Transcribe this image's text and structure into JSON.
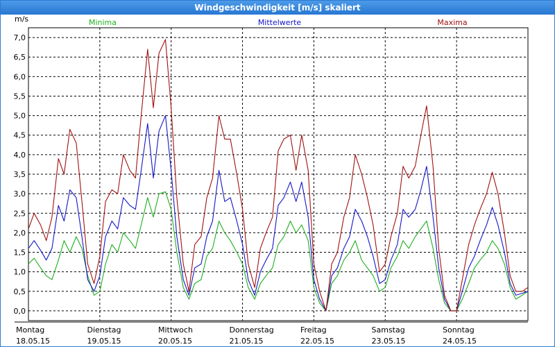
{
  "window": {
    "title": "Windgeschwindigkeit [m/s] skaliert"
  },
  "colors": {
    "minima": "#1fae1f",
    "mittel": "#1515c8",
    "maxima": "#a01010",
    "grid": "#000000",
    "axis_text": "#000000"
  },
  "chart_data": {
    "type": "line",
    "title": "Windgeschwindigkeit [m/s] skaliert",
    "ylabel": "m/s",
    "ylim": [
      -0.25,
      7.25
    ],
    "yticks": [
      "0,0",
      "0,5",
      "1,0",
      "1,5",
      "2,0",
      "2,5",
      "3,0",
      "3,5",
      "4,0",
      "4,5",
      "5,0",
      "5,5",
      "6,0",
      "6,5",
      "7,0"
    ],
    "xlim": [
      0,
      7
    ],
    "days": [
      {
        "name": "Montag",
        "date": "18.05.15"
      },
      {
        "name": "Dienstag",
        "date": "19.05.15"
      },
      {
        "name": "Mittwoch",
        "date": "20.05.15"
      },
      {
        "name": "Donnerstag",
        "date": "21.05.15"
      },
      {
        "name": "Freitag",
        "date": "22.05.15"
      },
      {
        "name": "Samstag",
        "date": "23.05.15"
      },
      {
        "name": "Sonntag",
        "date": "24.05.15"
      }
    ],
    "grid": true,
    "legend": "top",
    "series": [
      {
        "name": "Minima",
        "color": "#1fae1f",
        "x": [
          0,
          0.08,
          0.17,
          0.25,
          0.33,
          0.42,
          0.5,
          0.58,
          0.67,
          0.75,
          0.83,
          0.92,
          1.0,
          1.08,
          1.17,
          1.25,
          1.33,
          1.42,
          1.5,
          1.58,
          1.67,
          1.75,
          1.83,
          1.92,
          2.0,
          2.08,
          2.17,
          2.25,
          2.33,
          2.42,
          2.5,
          2.58,
          2.67,
          2.75,
          2.83,
          2.92,
          3.0,
          3.08,
          3.17,
          3.25,
          3.33,
          3.42,
          3.5,
          3.58,
          3.67,
          3.75,
          3.83,
          3.92,
          4.0,
          4.08,
          4.17,
          4.25,
          4.33,
          4.42,
          4.5,
          4.58,
          4.67,
          4.75,
          4.83,
          4.92,
          5.0,
          5.08,
          5.17,
          5.25,
          5.33,
          5.42,
          5.5,
          5.58,
          5.67,
          5.75,
          5.83,
          5.92,
          6.0,
          6.08,
          6.17,
          6.25,
          6.33,
          6.42,
          6.5,
          6.58,
          6.67,
          6.75,
          6.83,
          6.92,
          7.0
        ],
        "values": [
          1.2,
          1.35,
          1.1,
          0.9,
          0.8,
          1.3,
          1.8,
          1.5,
          1.9,
          1.6,
          0.9,
          0.4,
          0.5,
          1.2,
          1.7,
          1.5,
          2.0,
          1.8,
          1.6,
          2.2,
          2.9,
          2.4,
          3.0,
          3.05,
          2.6,
          1.5,
          0.6,
          0.3,
          0.7,
          0.8,
          1.4,
          1.6,
          2.3,
          2.0,
          1.8,
          1.5,
          1.2,
          0.6,
          0.3,
          0.7,
          0.9,
          1.1,
          1.7,
          1.9,
          2.3,
          2.0,
          2.2,
          1.8,
          0.6,
          0.2,
          0.0,
          0.7,
          0.9,
          1.3,
          1.5,
          1.8,
          1.3,
          1.1,
          0.9,
          0.5,
          0.6,
          1.1,
          1.4,
          1.8,
          1.6,
          1.9,
          2.1,
          2.3,
          1.6,
          0.8,
          0.2,
          0.0,
          0.0,
          0.3,
          0.7,
          1.1,
          1.3,
          1.5,
          1.8,
          1.6,
          1.2,
          0.6,
          0.3,
          0.4,
          0.5
        ]
      },
      {
        "name": "Mittelwerte",
        "color": "#1515c8",
        "x": [
          0,
          0.08,
          0.17,
          0.25,
          0.33,
          0.42,
          0.5,
          0.58,
          0.67,
          0.75,
          0.83,
          0.92,
          1.0,
          1.08,
          1.17,
          1.25,
          1.33,
          1.42,
          1.5,
          1.58,
          1.67,
          1.75,
          1.83,
          1.92,
          2.0,
          2.08,
          2.17,
          2.25,
          2.33,
          2.42,
          2.5,
          2.58,
          2.67,
          2.75,
          2.83,
          2.92,
          3.0,
          3.08,
          3.17,
          3.25,
          3.33,
          3.42,
          3.5,
          3.58,
          3.67,
          3.75,
          3.83,
          3.92,
          4.0,
          4.08,
          4.17,
          4.25,
          4.33,
          4.42,
          4.5,
          4.58,
          4.67,
          4.75,
          4.83,
          4.92,
          5.0,
          5.08,
          5.17,
          5.25,
          5.33,
          5.42,
          5.5,
          5.58,
          5.67,
          5.75,
          5.83,
          5.92,
          6.0,
          6.08,
          6.17,
          6.25,
          6.33,
          6.42,
          6.5,
          6.58,
          6.67,
          6.75,
          6.83,
          6.92,
          7.0
        ],
        "values": [
          1.6,
          1.8,
          1.55,
          1.3,
          1.6,
          2.7,
          2.3,
          3.1,
          2.9,
          1.9,
          0.8,
          0.5,
          0.9,
          1.9,
          2.3,
          2.1,
          2.9,
          2.7,
          2.6,
          3.6,
          4.8,
          3.4,
          4.6,
          5.0,
          3.6,
          1.9,
          0.8,
          0.4,
          1.1,
          1.2,
          1.9,
          2.3,
          3.6,
          2.8,
          2.9,
          2.3,
          1.7,
          0.8,
          0.4,
          1.0,
          1.3,
          1.6,
          2.7,
          2.9,
          3.3,
          2.8,
          3.3,
          2.4,
          0.8,
          0.3,
          0.0,
          0.9,
          1.1,
          1.6,
          1.9,
          2.6,
          2.3,
          1.9,
          1.4,
          0.7,
          0.8,
          1.3,
          1.7,
          2.6,
          2.4,
          2.6,
          3.1,
          3.7,
          2.4,
          1.1,
          0.3,
          0.0,
          0.0,
          0.5,
          1.1,
          1.4,
          1.8,
          2.2,
          2.65,
          2.2,
          1.5,
          0.7,
          0.4,
          0.45,
          0.5
        ]
      },
      {
        "name": "Maxima",
        "color": "#a01010",
        "x": [
          0,
          0.08,
          0.17,
          0.25,
          0.33,
          0.42,
          0.5,
          0.58,
          0.67,
          0.75,
          0.83,
          0.92,
          1.0,
          1.08,
          1.17,
          1.25,
          1.33,
          1.42,
          1.5,
          1.58,
          1.67,
          1.75,
          1.83,
          1.92,
          2.0,
          2.08,
          2.17,
          2.25,
          2.33,
          2.42,
          2.5,
          2.58,
          2.67,
          2.75,
          2.83,
          2.92,
          3.0,
          3.08,
          3.17,
          3.25,
          3.33,
          3.42,
          3.5,
          3.58,
          3.67,
          3.75,
          3.83,
          3.92,
          4.0,
          4.08,
          4.17,
          4.25,
          4.33,
          4.42,
          4.5,
          4.58,
          4.67,
          4.75,
          4.83,
          4.92,
          5.0,
          5.08,
          5.17,
          5.25,
          5.33,
          5.42,
          5.5,
          5.58,
          5.67,
          5.75,
          5.83,
          5.92,
          6.0,
          6.08,
          6.17,
          6.25,
          6.33,
          6.42,
          6.5,
          6.58,
          6.67,
          6.75,
          6.83,
          6.92,
          7.0
        ],
        "values": [
          2.1,
          2.5,
          2.2,
          1.8,
          2.4,
          3.9,
          3.5,
          4.65,
          4.3,
          2.8,
          1.2,
          0.7,
          1.4,
          2.8,
          3.1,
          3.0,
          4.0,
          3.6,
          3.4,
          5.0,
          6.7,
          5.2,
          6.6,
          6.95,
          5.2,
          2.9,
          1.2,
          0.5,
          1.7,
          1.9,
          2.9,
          3.4,
          5.0,
          4.4,
          4.4,
          3.5,
          2.6,
          1.2,
          0.6,
          1.6,
          2.0,
          2.4,
          4.1,
          4.4,
          4.5,
          3.6,
          4.5,
          3.6,
          1.2,
          0.5,
          0.0,
          1.2,
          1.5,
          2.4,
          2.9,
          4.0,
          3.5,
          2.9,
          2.2,
          1.0,
          1.2,
          1.9,
          2.5,
          3.7,
          3.4,
          3.7,
          4.5,
          5.25,
          3.7,
          1.6,
          0.4,
          0.0,
          0.0,
          0.8,
          1.7,
          2.2,
          2.6,
          3.0,
          3.55,
          3.0,
          2.0,
          0.9,
          0.5,
          0.5,
          0.6
        ]
      }
    ]
  }
}
